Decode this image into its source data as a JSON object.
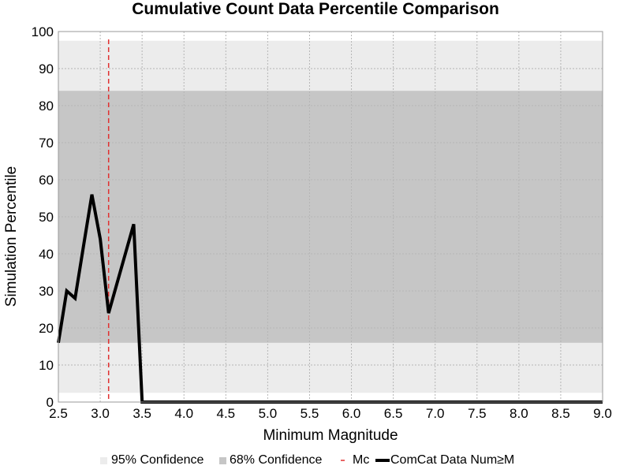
{
  "chart_data": {
    "type": "line",
    "title": "Cumulative Count Data Percentile Comparison",
    "xlabel": "Minimum Magnitude",
    "ylabel": "Simulation Percentile",
    "xlim": [
      2.5,
      9.0
    ],
    "ylim": [
      0,
      100
    ],
    "x_ticks": [
      "2.5",
      "3.0",
      "3.5",
      "4.0",
      "4.5",
      "5.0",
      "5.5",
      "6.0",
      "6.5",
      "7.0",
      "7.5",
      "8.0",
      "8.5",
      "9.0"
    ],
    "y_ticks": [
      "0",
      "10",
      "20",
      "30",
      "40",
      "50",
      "60",
      "70",
      "80",
      "90",
      "100"
    ],
    "grid": true,
    "legend_position": "bottom",
    "bands": [
      {
        "name": "95% Confidence",
        "low": 2.5,
        "high": 97.5,
        "color": "#ececec"
      },
      {
        "name": "68% Confidence",
        "low": 16,
        "high": 84,
        "color": "#c6c6c6"
      }
    ],
    "reference_lines": [
      {
        "name": "Mc",
        "x": 3.1,
        "color": "#e03030",
        "style": "dashed"
      }
    ],
    "series": [
      {
        "name": "ComCat Data Num≥M",
        "color": "#000000",
        "x": [
          2.5,
          2.6,
          2.7,
          2.8,
          2.9,
          3.0,
          3.1,
          3.2,
          3.3,
          3.4,
          3.5,
          3.6,
          4.0,
          5.0,
          6.0,
          7.0,
          8.0,
          9.0
        ],
        "y": [
          16,
          30,
          28,
          42,
          56,
          44,
          24,
          32,
          40,
          48,
          0,
          0,
          0,
          0,
          0,
          0,
          0,
          0
        ]
      }
    ]
  }
}
